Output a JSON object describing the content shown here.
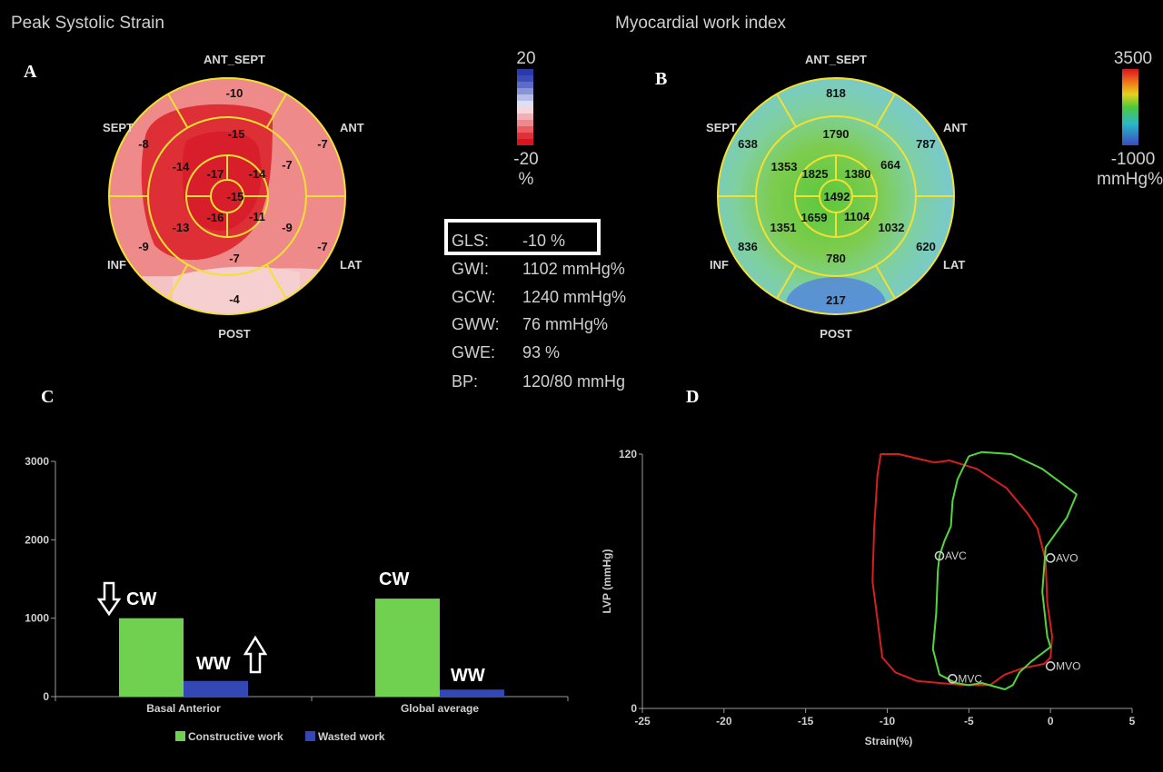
{
  "titles": {
    "left": "Peak Systolic Strain",
    "right": "Myocardial work index"
  },
  "panel_letters": {
    "a": "A",
    "b": "B",
    "c": "C",
    "d": "D"
  },
  "segment_labels": {
    "ant_sept": "ANT_SEPT",
    "ant": "ANT",
    "lat": "LAT",
    "post": "POST",
    "inf": "INF",
    "sept": "SEPT"
  },
  "strain_scale": {
    "max": "20",
    "min": "-20",
    "unit": "%"
  },
  "work_scale": {
    "max": "3500",
    "min": "-1000",
    "unit": "mmHg%"
  },
  "stats": [
    {
      "key": "GLS:",
      "value": "-10 %",
      "highlighted": true
    },
    {
      "key": "GWI:",
      "value": "1102 mmHg%"
    },
    {
      "key": "GCW:",
      "value": "1240 mmHg%"
    },
    {
      "key": "GWW:",
      "value": "76 mmHg%"
    },
    {
      "key": "GWE:",
      "value": "93 %"
    },
    {
      "key": "BP:",
      "value": "120/80 mmHg"
    }
  ],
  "annotations": {
    "cw": "CW",
    "ww": "WW"
  },
  "chart_data": [
    {
      "type": "bullseye",
      "title": "Peak Systolic Strain",
      "unit": "%",
      "segments": {
        "basal": {
          "ant_sept": -10,
          "ant": -7,
          "lat": -7,
          "post": -4,
          "inf": -9,
          "sept": -8
        },
        "mid": {
          "ant_sept": -15,
          "ant": -7,
          "lat": -9,
          "post": -7,
          "inf": -13,
          "sept": -14
        },
        "apical": {
          "ant": -17,
          "lat": -14,
          "post": -11,
          "sept": -16
        },
        "apex": -15
      }
    },
    {
      "type": "bullseye",
      "title": "Myocardial work index",
      "unit": "mmHg%",
      "segments": {
        "basal": {
          "ant_sept": 818,
          "ant": 787,
          "lat": 620,
          "post": 217,
          "inf": 836,
          "sept": 638
        },
        "mid": {
          "ant_sept": 1790,
          "ant": 664,
          "lat": 1032,
          "post": 780,
          "inf": 1351,
          "sept": 1353
        },
        "apical": {
          "ant": 1825,
          "lat": 1380,
          "post": 1104,
          "sept": 1659
        },
        "apex": 1492
      }
    },
    {
      "type": "bar",
      "categories": [
        "Basal Anterior",
        "Global average"
      ],
      "series": [
        {
          "name": "Constructive work",
          "color": "#6fd14f",
          "values": [
            1000,
            1250
          ]
        },
        {
          "name": "Wasted work",
          "color": "#3347b5",
          "values": [
            200,
            90
          ]
        }
      ],
      "ylim": [
        0,
        3000
      ],
      "yticks": [
        0,
        1000,
        2000,
        3000
      ]
    },
    {
      "type": "line",
      "xlabel": "Strain(%)",
      "ylabel": "LVP (mmHg)",
      "xlim": [
        -25,
        5
      ],
      "ylim": [
        0,
        120
      ],
      "xticks": [
        -25,
        -20,
        -15,
        -10,
        -5,
        0,
        5
      ],
      "yticks": [
        0,
        120
      ],
      "series": [
        {
          "name": "",
          "color": "#d42020",
          "points": [
            [
              -7.1,
              116
            ],
            [
              -9.3,
              120
            ],
            [
              -10.4,
              120
            ],
            [
              -10.6,
              110
            ],
            [
              -10.8,
              85
            ],
            [
              -10.9,
              60
            ],
            [
              -10.3,
              24
            ],
            [
              -9.5,
              17
            ],
            [
              -8.2,
              13
            ],
            [
              -6.8,
              12
            ],
            [
              -5.3,
              11
            ],
            [
              -3.7,
              11
            ],
            [
              -2.8,
              16
            ],
            [
              -1.7,
              19
            ],
            [
              -0.4,
              21
            ],
            [
              0,
              24
            ],
            [
              0.1,
              34
            ],
            [
              -0.2,
              50
            ],
            [
              -0.3,
              70
            ],
            [
              -0.8,
              85
            ],
            [
              -1.4,
              92
            ],
            [
              -2.7,
              104
            ],
            [
              -4.5,
              113
            ],
            [
              -6.2,
              117
            ],
            [
              -7.1,
              116
            ]
          ]
        },
        {
          "name": "",
          "color": "#52d63a",
          "points": [
            [
              -5.0,
              119
            ],
            [
              -4.2,
              121
            ],
            [
              -2.4,
              120
            ],
            [
              -0.5,
              113
            ],
            [
              1.6,
              101
            ],
            [
              1.0,
              90
            ],
            [
              -0.3,
              76
            ],
            [
              -0.5,
              55
            ],
            [
              -0.2,
              34
            ],
            [
              0,
              29
            ],
            [
              -1.2,
              22
            ],
            [
              -1.9,
              17
            ],
            [
              -2.3,
              11
            ],
            [
              -2.8,
              9
            ],
            [
              -4.2,
              12
            ],
            [
              -5.0,
              11
            ],
            [
              -5.8,
              12
            ],
            [
              -6.8,
              16
            ],
            [
              -7.2,
              28
            ],
            [
              -7.0,
              45
            ],
            [
              -6.9,
              65
            ],
            [
              -6.8,
              72
            ],
            [
              -6.5,
              79
            ],
            [
              -6.1,
              86
            ],
            [
              -6.0,
              98
            ],
            [
              -5.7,
              108
            ],
            [
              -5.0,
              119
            ]
          ]
        }
      ],
      "markers": [
        {
          "label": "AVC",
          "x": -6.8,
          "y": 72
        },
        {
          "label": "AVO",
          "x": 0,
          "y": 71
        },
        {
          "label": "MVO",
          "x": 0,
          "y": 20
        },
        {
          "label": "MVC",
          "x": -6.0,
          "y": 14
        }
      ]
    }
  ]
}
